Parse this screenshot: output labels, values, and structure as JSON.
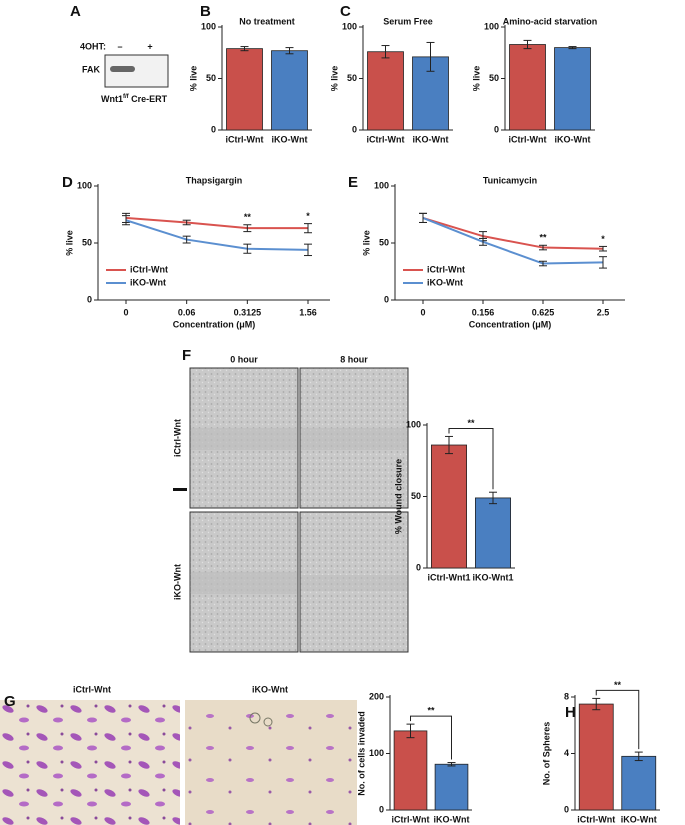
{
  "panel_labels": [
    "A",
    "B",
    "C",
    "D",
    "E",
    "F",
    "G",
    "H"
  ],
  "blot": {
    "treatment_label": "4OHT:",
    "lanes": [
      "–",
      "+"
    ],
    "protein": "FAK",
    "genotype": "Wnt1",
    "genotype_sup": "f/f",
    "genotype_suffix": " Cre-ERT"
  },
  "wound_images": {
    "time_labels": [
      "0 hour",
      "8 hour"
    ],
    "row_labels": [
      "iCtrl-Wnt",
      "iKO-Wnt"
    ]
  },
  "invasion_images": {
    "labels": [
      "iCtrl-Wnt",
      "iKO-Wnt"
    ]
  },
  "chart_data": [
    {
      "type": "bar",
      "title": "No treatment",
      "y_label": "% live",
      "categories": [
        "iCtrl-Wnt",
        "iKO-Wnt"
      ],
      "values": [
        79,
        77
      ],
      "errors": [
        2,
        3
      ],
      "colors": [
        "#c9504b",
        "#4a7fc1"
      ],
      "ylim": [
        0,
        100
      ],
      "yticks": [
        0,
        50,
        100
      ]
    },
    {
      "type": "bar",
      "title": "Serum Free",
      "y_label": "% live",
      "categories": [
        "iCtrl-Wnt",
        "iKO-Wnt"
      ],
      "values": [
        76,
        71
      ],
      "errors": [
        6,
        14
      ],
      "colors": [
        "#c9504b",
        "#4a7fc1"
      ],
      "ylim": [
        0,
        100
      ],
      "yticks": [
        0,
        50,
        100
      ]
    },
    {
      "type": "bar",
      "title": "Amino-acid starvation",
      "y_label": "% live",
      "categories": [
        "iCtrl-Wnt",
        "iKO-Wnt"
      ],
      "values": [
        83,
        80
      ],
      "errors": [
        4,
        1
      ],
      "colors": [
        "#c9504b",
        "#4a7fc1"
      ],
      "ylim": [
        0,
        100
      ],
      "yticks": [
        0,
        50,
        100
      ]
    },
    {
      "type": "line",
      "title": "Thapsigargin",
      "y_label": "% live",
      "x_label": "Concentration (μM)",
      "categories": [
        "0",
        "0.06",
        "0.3125",
        "1.56"
      ],
      "series": [
        {
          "name": "iCtrl-Wnt",
          "color": "#d9534f",
          "values": [
            72,
            68,
            63,
            63
          ],
          "errors": [
            4,
            2,
            3,
            4
          ]
        },
        {
          "name": "iKO-Wnt",
          "color": "#5b8fd0",
          "values": [
            70,
            53,
            45,
            44
          ],
          "errors": [
            4,
            3,
            4,
            5
          ]
        }
      ],
      "annotations": [
        null,
        null,
        "**",
        "*"
      ],
      "ylim": [
        0,
        100
      ],
      "yticks": [
        0,
        50,
        100
      ],
      "legend": "lower-left"
    },
    {
      "type": "line",
      "title": "Tunicamycin",
      "y_label": "% live",
      "x_label": "Concentration (μM)",
      "categories": [
        "0",
        "0.156",
        "0.625",
        "2.5"
      ],
      "series": [
        {
          "name": "iCtrl-Wnt",
          "color": "#d9534f",
          "values": [
            72,
            56,
            46,
            45
          ],
          "errors": [
            4,
            4,
            2,
            2
          ]
        },
        {
          "name": "iKO-Wnt",
          "color": "#5b8fd0",
          "values": [
            72,
            51,
            32,
            33
          ],
          "errors": [
            4,
            3,
            2,
            5
          ]
        }
      ],
      "annotations": [
        null,
        null,
        "**",
        "*"
      ],
      "ylim": [
        0,
        100
      ],
      "yticks": [
        0,
        50,
        100
      ],
      "legend": "lower-left"
    },
    {
      "type": "bar",
      "y_label": "% Wound closure",
      "categories": [
        "iCtrl-Wnt1",
        "iKO-Wnt1"
      ],
      "values": [
        86,
        49
      ],
      "errors": [
        6,
        4
      ],
      "colors": [
        "#c9504b",
        "#4a7fc1"
      ],
      "significance": "**",
      "ylim": [
        0,
        100
      ],
      "yticks": [
        0,
        50,
        100
      ]
    },
    {
      "type": "bar",
      "y_label": "No. of cells invaded",
      "categories": [
        "iCtrl-Wnt",
        "iKO-Wnt"
      ],
      "values": [
        140,
        81
      ],
      "errors": [
        12,
        3
      ],
      "colors": [
        "#c9504b",
        "#4a7fc1"
      ],
      "significance": "**",
      "ylim": [
        0,
        200
      ],
      "yticks": [
        0,
        100,
        200
      ]
    },
    {
      "type": "bar",
      "y_label": "No. of Spheres",
      "categories": [
        "iCtrl-Wnt",
        "iKO-Wnt"
      ],
      "values": [
        7.5,
        3.8
      ],
      "errors": [
        0.4,
        0.3
      ],
      "colors": [
        "#c9504b",
        "#4a7fc1"
      ],
      "significance": "**",
      "ylim": [
        0,
        8
      ],
      "yticks": [
        0,
        4,
        8
      ]
    }
  ]
}
